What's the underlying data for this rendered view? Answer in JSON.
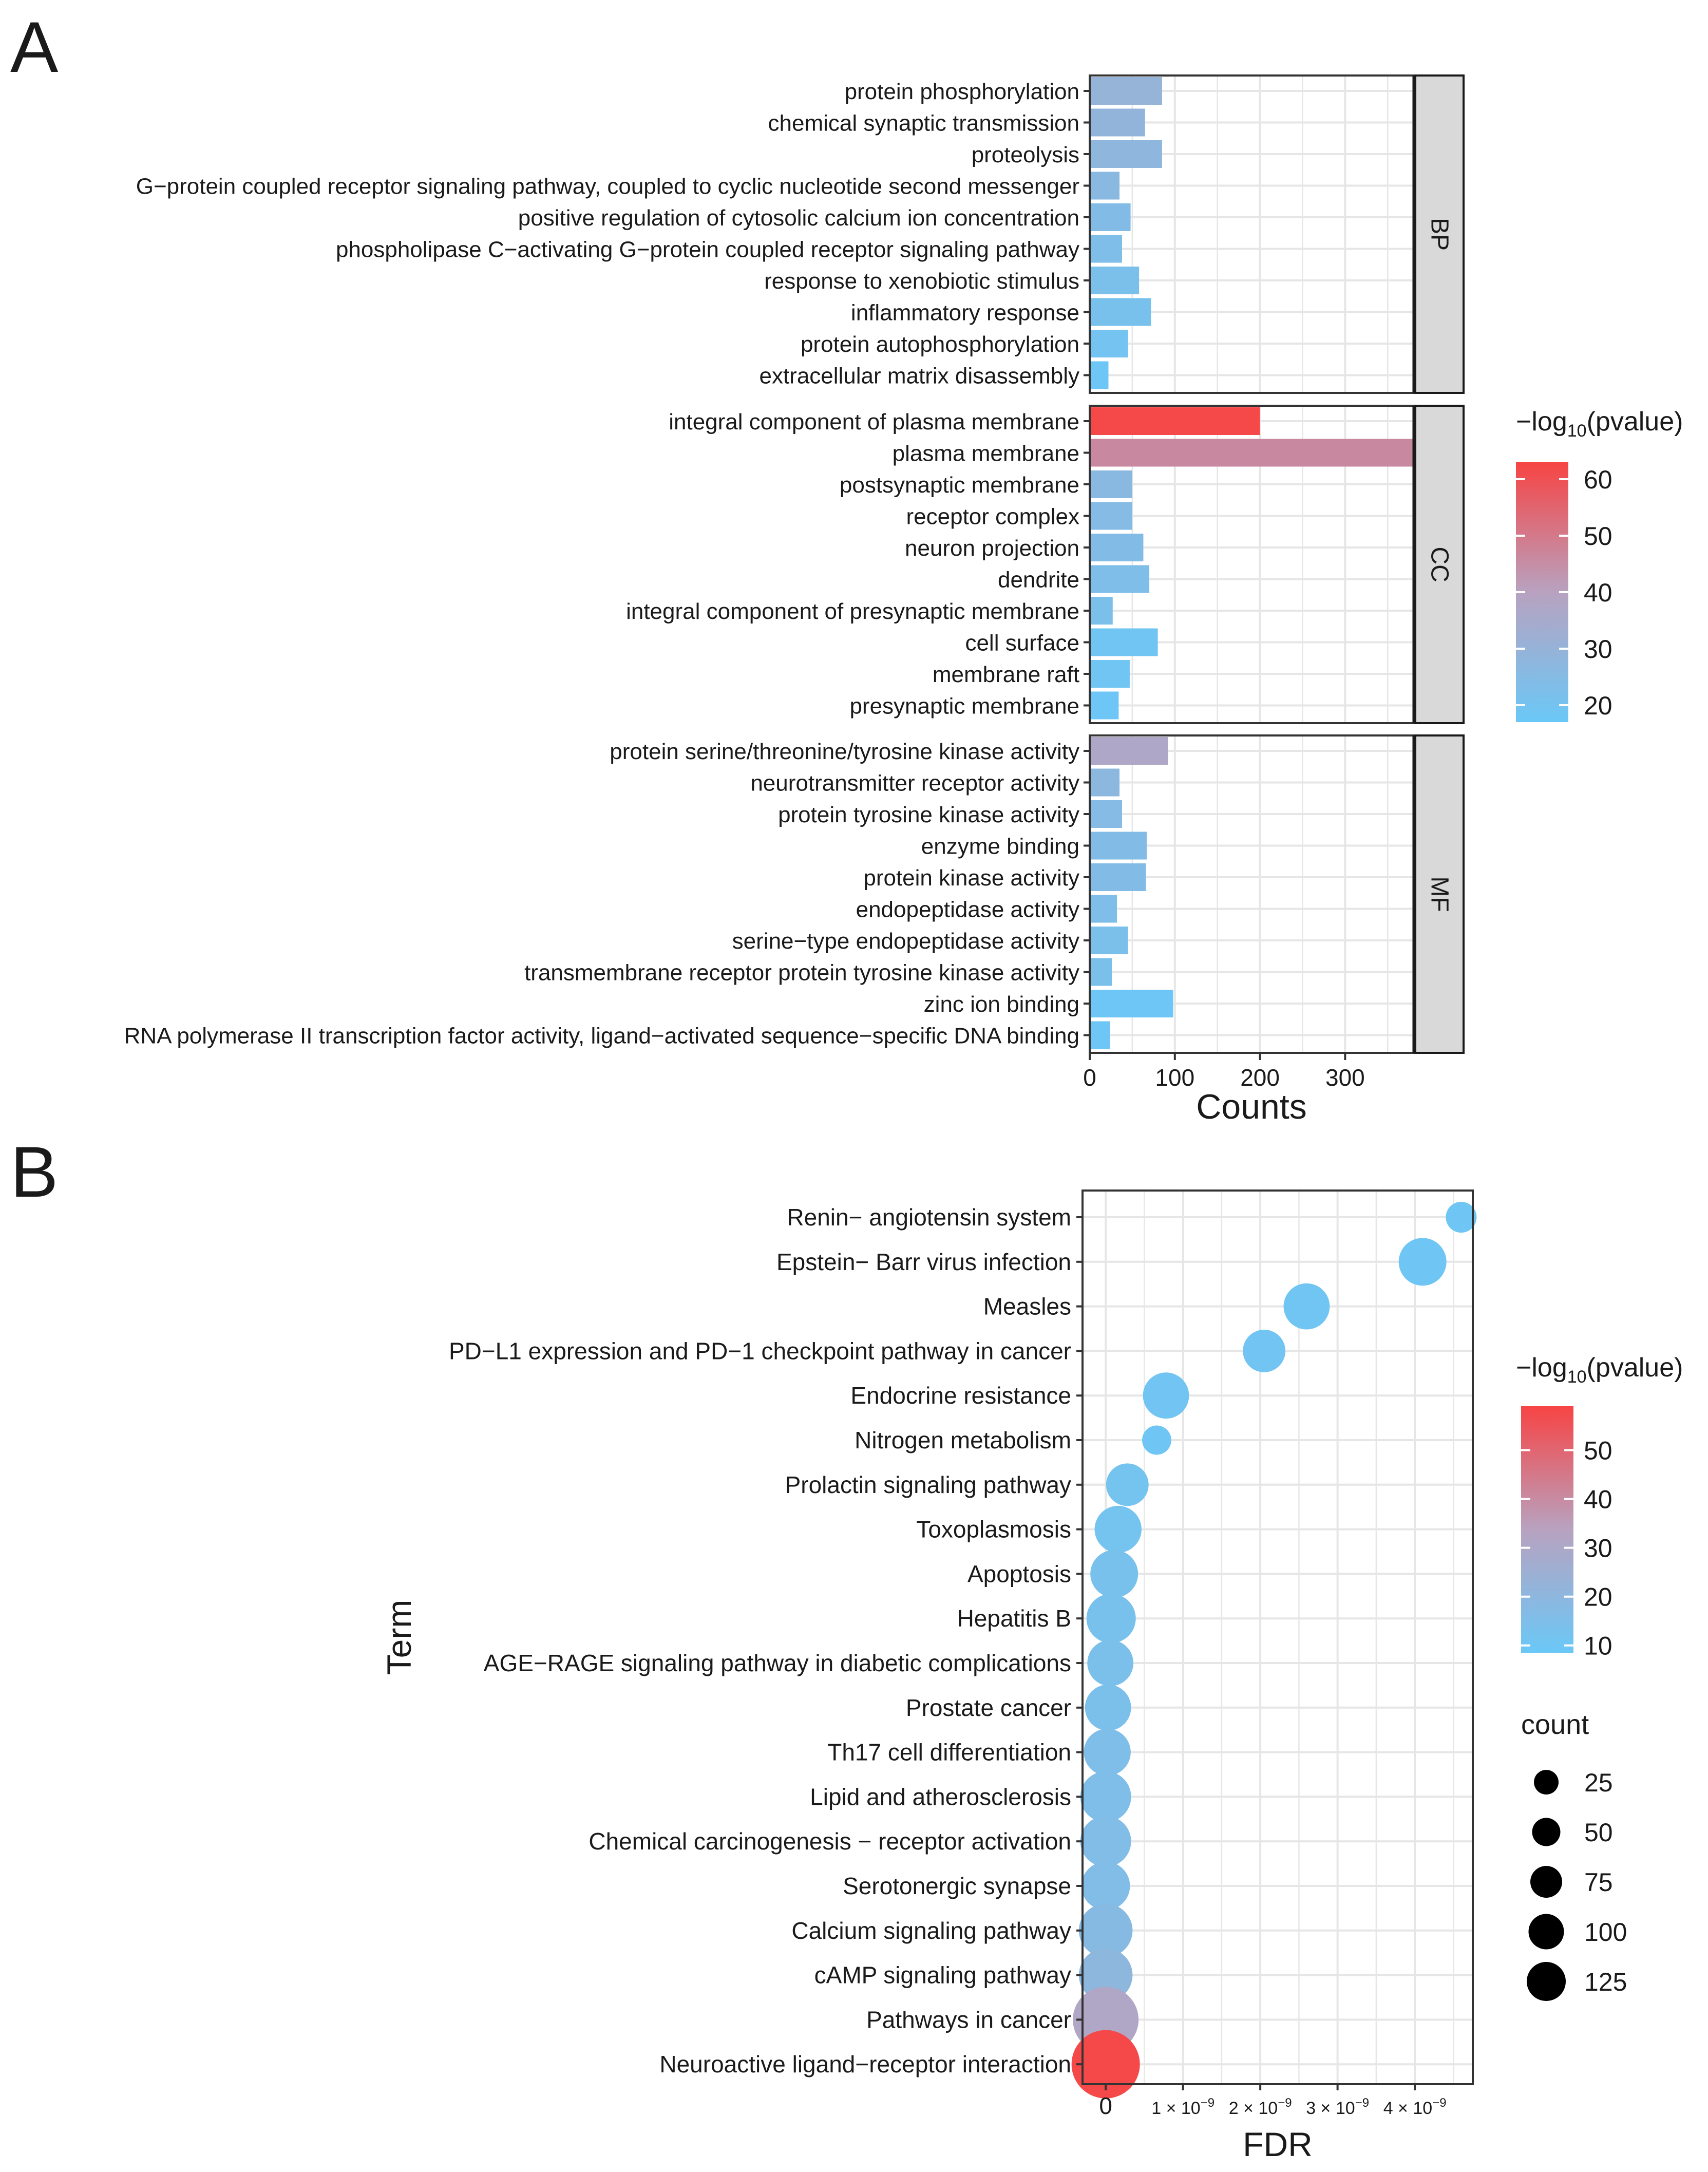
{
  "panels": {
    "a_label": "A",
    "b_label": "B"
  },
  "colors": {
    "low": "#6ac8f7",
    "mid": "#b8a2c0",
    "high": "#f74444",
    "grid": "#e6e6e6",
    "strip": "#d9d9d9"
  },
  "chart_data": [
    {
      "type": "bar",
      "orientation": "horizontal",
      "xlabel": "Counts",
      "xlim": [
        0,
        380
      ],
      "xticks": [
        0,
        100,
        200,
        300
      ],
      "color_legend": {
        "title_prefix": "−log",
        "title_sub": "10",
        "title_suffix": "(pvalue)",
        "range": [
          17,
          63
        ],
        "ticks": [
          60,
          50,
          40,
          30,
          20
        ]
      },
      "facets": [
        {
          "label": "BP",
          "categories": [
            "protein phosphorylation",
            "chemical synaptic transmission",
            "proteolysis",
            "G−protein coupled receptor signaling pathway, coupled to cyclic nucleotide second messenger",
            "positive regulation of cytosolic calcium ion concentration",
            "phospholipase C−activating G−protein coupled receptor signaling pathway",
            "response to xenobiotic stimulus",
            "inflammatory response",
            "protein autophosphorylation",
            "extracellular matrix disassembly"
          ],
          "values": [
            85,
            65,
            85,
            35,
            48,
            38,
            58,
            72,
            45,
            22
          ],
          "neglog10p": [
            30,
            29,
            28,
            26,
            24,
            23,
            22,
            21,
            20,
            18
          ]
        },
        {
          "label": "CC",
          "categories": [
            "integral component of plasma membrane",
            "plasma membrane",
            "postsynaptic membrane",
            "receptor complex",
            "neuron projection",
            "dendrite",
            "integral component of presynaptic membrane",
            "cell surface",
            "membrane raft",
            "presynaptic membrane"
          ],
          "values": [
            200,
            380,
            50,
            50,
            63,
            70,
            27,
            80,
            47,
            34
          ],
          "neglog10p": [
            62,
            46,
            26,
            25,
            24,
            23,
            22,
            19,
            19,
            18
          ]
        },
        {
          "label": "MF",
          "categories": [
            "protein serine/threonine/tyrosine kinase activity",
            "neurotransmitter receptor activity",
            "protein tyrosine kinase activity",
            "enzyme binding",
            "protein kinase activity",
            "endopeptidase activity",
            "serine−type endopeptidase activity",
            "transmembrane receptor protein tyrosine kinase activity",
            "zinc ion binding",
            "RNA polymerase II transcription factor activity, ligand−activated sequence−specific DNA binding"
          ],
          "values": [
            92,
            35,
            38,
            67,
            66,
            32,
            45,
            26,
            98,
            24
          ],
          "neglog10p": [
            37,
            27,
            25,
            24,
            24,
            23,
            22,
            22,
            18,
            18
          ]
        }
      ]
    },
    {
      "type": "scatter",
      "subtype": "bubble",
      "xlabel": "FDR",
      "ylabel": "Term",
      "xlim": [
        -3e-10,
        4.75e-09
      ],
      "xticks": [
        0,
        1e-09,
        2e-09,
        3e-09,
        4e-09
      ],
      "xtick_labels": [
        {
          "m": "0",
          "e": ""
        },
        {
          "m": "1 × 10",
          "e": "−9"
        },
        {
          "m": "2 × 10",
          "e": "−9"
        },
        {
          "m": "3 × 10",
          "e": "−9"
        },
        {
          "m": "4 × 10",
          "e": "−9"
        }
      ],
      "color_legend": {
        "title_prefix": "−log",
        "title_sub": "10",
        "title_suffix": "(pvalue)",
        "range": [
          8.5,
          59
        ],
        "ticks": [
          50,
          40,
          30,
          20,
          10
        ]
      },
      "size_legend": {
        "title": "count",
        "values": [
          25,
          50,
          75,
          100,
          125
        ],
        "labels": [
          "25",
          "50",
          "75",
          "100",
          "125"
        ]
      },
      "points": [
        {
          "term": "Renin− angiotensin system",
          "fdr": 4.6e-09,
          "count": 12,
          "neglog10p": 10
        },
        {
          "term": "Epstein− Barr virus infection",
          "fdr": 4.1e-09,
          "count": 44,
          "neglog10p": 10
        },
        {
          "term": "Measles",
          "fdr": 2.6e-09,
          "count": 40,
          "neglog10p": 10.5
        },
        {
          "term": "PD−L1 expression and PD−1 checkpoint pathway in cancer",
          "fdr": 2.05e-09,
          "count": 32,
          "neglog10p": 11
        },
        {
          "term": "Endocrine resistance",
          "fdr": 7.8e-10,
          "count": 40,
          "neglog10p": 11
        },
        {
          "term": "Nitrogen metabolism",
          "fdr": 6.6e-10,
          "count": 10,
          "neglog10p": 10
        },
        {
          "term": "Prolactin signaling pathway",
          "fdr": 2.8e-10,
          "count": 32,
          "neglog10p": 12
        },
        {
          "term": "Toxoplasmosis",
          "fdr": 1.6e-10,
          "count": 42,
          "neglog10p": 12
        },
        {
          "term": "Apoptosis",
          "fdr": 1.1e-10,
          "count": 44,
          "neglog10p": 13
        },
        {
          "term": "Hepatitis B",
          "fdr": 7e-11,
          "count": 48,
          "neglog10p": 13
        },
        {
          "term": "AGE−RAGE signaling pathway in diabetic complications",
          "fdr": 6e-11,
          "count": 40,
          "neglog10p": 14
        },
        {
          "term": "Prostate cancer",
          "fdr": 3e-11,
          "count": 40,
          "neglog10p": 14
        },
        {
          "term": "Th17 cell differentiation",
          "fdr": 2e-11,
          "count": 42,
          "neglog10p": 15
        },
        {
          "term": "Lipid and atherosclerosis",
          "fdr": 0.0,
          "count": 52,
          "neglog10p": 15
        },
        {
          "term": "Chemical carcinogenesis − receptor activation",
          "fdr": 0.0,
          "count": 52,
          "neglog10p": 16
        },
        {
          "term": "Serotonergic synapse",
          "fdr": 0.0,
          "count": 46,
          "neglog10p": 16
        },
        {
          "term": "Calcium signaling pathway",
          "fdr": 0.0,
          "count": 60,
          "neglog10p": 18
        },
        {
          "term": "cAMP signaling pathway",
          "fdr": 0.0,
          "count": 60,
          "neglog10p": 20
        },
        {
          "term": "Pathways in cancer",
          "fdr": 0.0,
          "count": 100,
          "neglog10p": 31
        },
        {
          "term": "Neuroactive ligand−receptor interaction",
          "fdr": 0.0,
          "count": 110,
          "neglog10p": 58
        }
      ]
    }
  ]
}
